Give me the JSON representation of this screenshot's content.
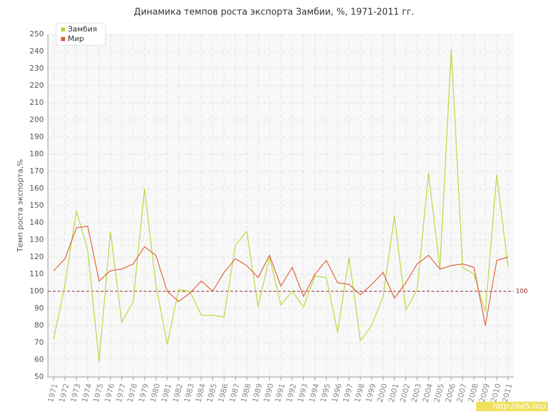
{
  "chart_data": {
    "type": "line",
    "title": "Динамика темпов роста экспорта Замбии, %, 1971-2011 гг.",
    "y_label": "Темп роста экспорта,%",
    "categories": [
      "1971",
      "1972",
      "1973",
      "1974",
      "1975",
      "1976",
      "1977",
      "1978",
      "1979",
      "1980",
      "1981",
      "1982",
      "1983",
      "1984",
      "1985",
      "1986",
      "1987",
      "1988",
      "1989",
      "1990",
      "1991",
      "1992",
      "1993",
      "1994",
      "1995",
      "1996",
      "1997",
      "1998",
      "1999",
      "2000",
      "2001",
      "2002",
      "2003",
      "2004",
      "2005",
      "2006",
      "2007",
      "2008",
      "2009",
      "2010",
      "2011"
    ],
    "series": [
      {
        "name": "Замбия",
        "color": "#b5d93a",
        "values": [
          72,
          104,
          147,
          124,
          59,
          135,
          82,
          94,
          160,
          104,
          69,
          101,
          100,
          86,
          86,
          85,
          127,
          135,
          91,
          120,
          92,
          100,
          91,
          109,
          108,
          76,
          120,
          71,
          80,
          97,
          144,
          89,
          101,
          169,
          113,
          241,
          114,
          110,
          88,
          168,
          114
        ]
      },
      {
        "name": "Мир",
        "color": "#e0603a",
        "values": [
          112,
          119,
          137,
          138,
          106,
          112,
          113,
          116,
          126,
          121,
          100,
          94,
          99,
          106,
          100,
          111,
          119,
          115,
          108,
          121,
          103,
          114,
          97,
          110,
          118,
          105,
          104,
          98,
          104,
          111,
          96,
          105,
          116,
          121,
          113,
          115,
          116,
          114,
          80,
          118,
          120
        ]
      }
    ],
    "ylim": [
      50,
      250
    ],
    "yticks": [
      50,
      60,
      70,
      80,
      90,
      100,
      110,
      120,
      130,
      140,
      150,
      160,
      170,
      180,
      190,
      200,
      210,
      220,
      230,
      240,
      250
    ],
    "grid": true,
    "legend": "top-left",
    "reference_line": {
      "value": 100,
      "color": "#8b1a1a"
    },
    "watermark": "http://be5.biz/"
  }
}
